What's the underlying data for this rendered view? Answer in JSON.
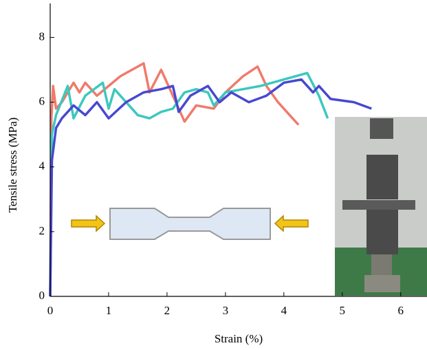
{
  "chart_data": {
    "type": "line",
    "xlabel": "Strain (%)",
    "ylabel": "Tensile stress (MPa)",
    "xlim": [
      0,
      6.45
    ],
    "xticks": [
      0,
      1,
      2,
      3,
      4,
      5,
      6
    ],
    "ylim": [
      0,
      9.05
    ],
    "yticks": [
      0,
      2,
      4,
      6,
      8
    ],
    "series": [
      {
        "color": "#f07a6c",
        "x": [
          0,
          0.02,
          0.05,
          0.1,
          0.2,
          0.4,
          0.5,
          0.6,
          0.8,
          1.0,
          1.2,
          1.4,
          1.6,
          1.7,
          1.9,
          2.1,
          2.3,
          2.5,
          2.8,
          3.0,
          3.3,
          3.55,
          3.7,
          3.9,
          4.1,
          4.25
        ],
        "values": [
          0,
          5.5,
          6.5,
          5.8,
          6.0,
          6.6,
          6.3,
          6.6,
          6.2,
          6.5,
          6.8,
          7.0,
          7.2,
          6.3,
          7.0,
          6.2,
          5.4,
          5.9,
          5.8,
          6.3,
          6.8,
          7.1,
          6.5,
          6.0,
          5.6,
          5.3
        ]
      },
      {
        "color": "#3cc8be",
        "x": [
          0,
          0.03,
          0.1,
          0.3,
          0.4,
          0.6,
          0.9,
          1.0,
          1.1,
          1.3,
          1.5,
          1.7,
          1.9,
          2.1,
          2.3,
          2.5,
          2.7,
          2.8,
          3.0,
          3.3,
          3.6,
          4.0,
          4.4,
          4.6,
          4.75
        ],
        "values": [
          0,
          5.0,
          5.6,
          6.5,
          5.5,
          6.2,
          6.6,
          5.8,
          6.4,
          6.0,
          5.6,
          5.5,
          5.7,
          5.8,
          6.3,
          6.4,
          6.3,
          5.9,
          6.3,
          6.4,
          6.5,
          6.7,
          6.9,
          6.2,
          5.5
        ]
      },
      {
        "color": "#4848d0",
        "x": [
          0,
          0.03,
          0.1,
          0.2,
          0.4,
          0.6,
          0.8,
          1.0,
          1.3,
          1.6,
          1.9,
          2.1,
          2.2,
          2.4,
          2.7,
          2.9,
          3.1,
          3.4,
          3.7,
          4.0,
          4.3,
          4.5,
          4.6,
          4.8,
          5.2,
          5.5
        ],
        "values": [
          0,
          4.2,
          5.2,
          5.5,
          5.9,
          5.6,
          6.0,
          5.5,
          6.0,
          6.3,
          6.4,
          6.5,
          5.7,
          6.2,
          6.5,
          6.0,
          6.3,
          6.0,
          6.2,
          6.6,
          6.7,
          6.3,
          6.5,
          6.1,
          6.0,
          5.8
        ]
      }
    ]
  }
}
